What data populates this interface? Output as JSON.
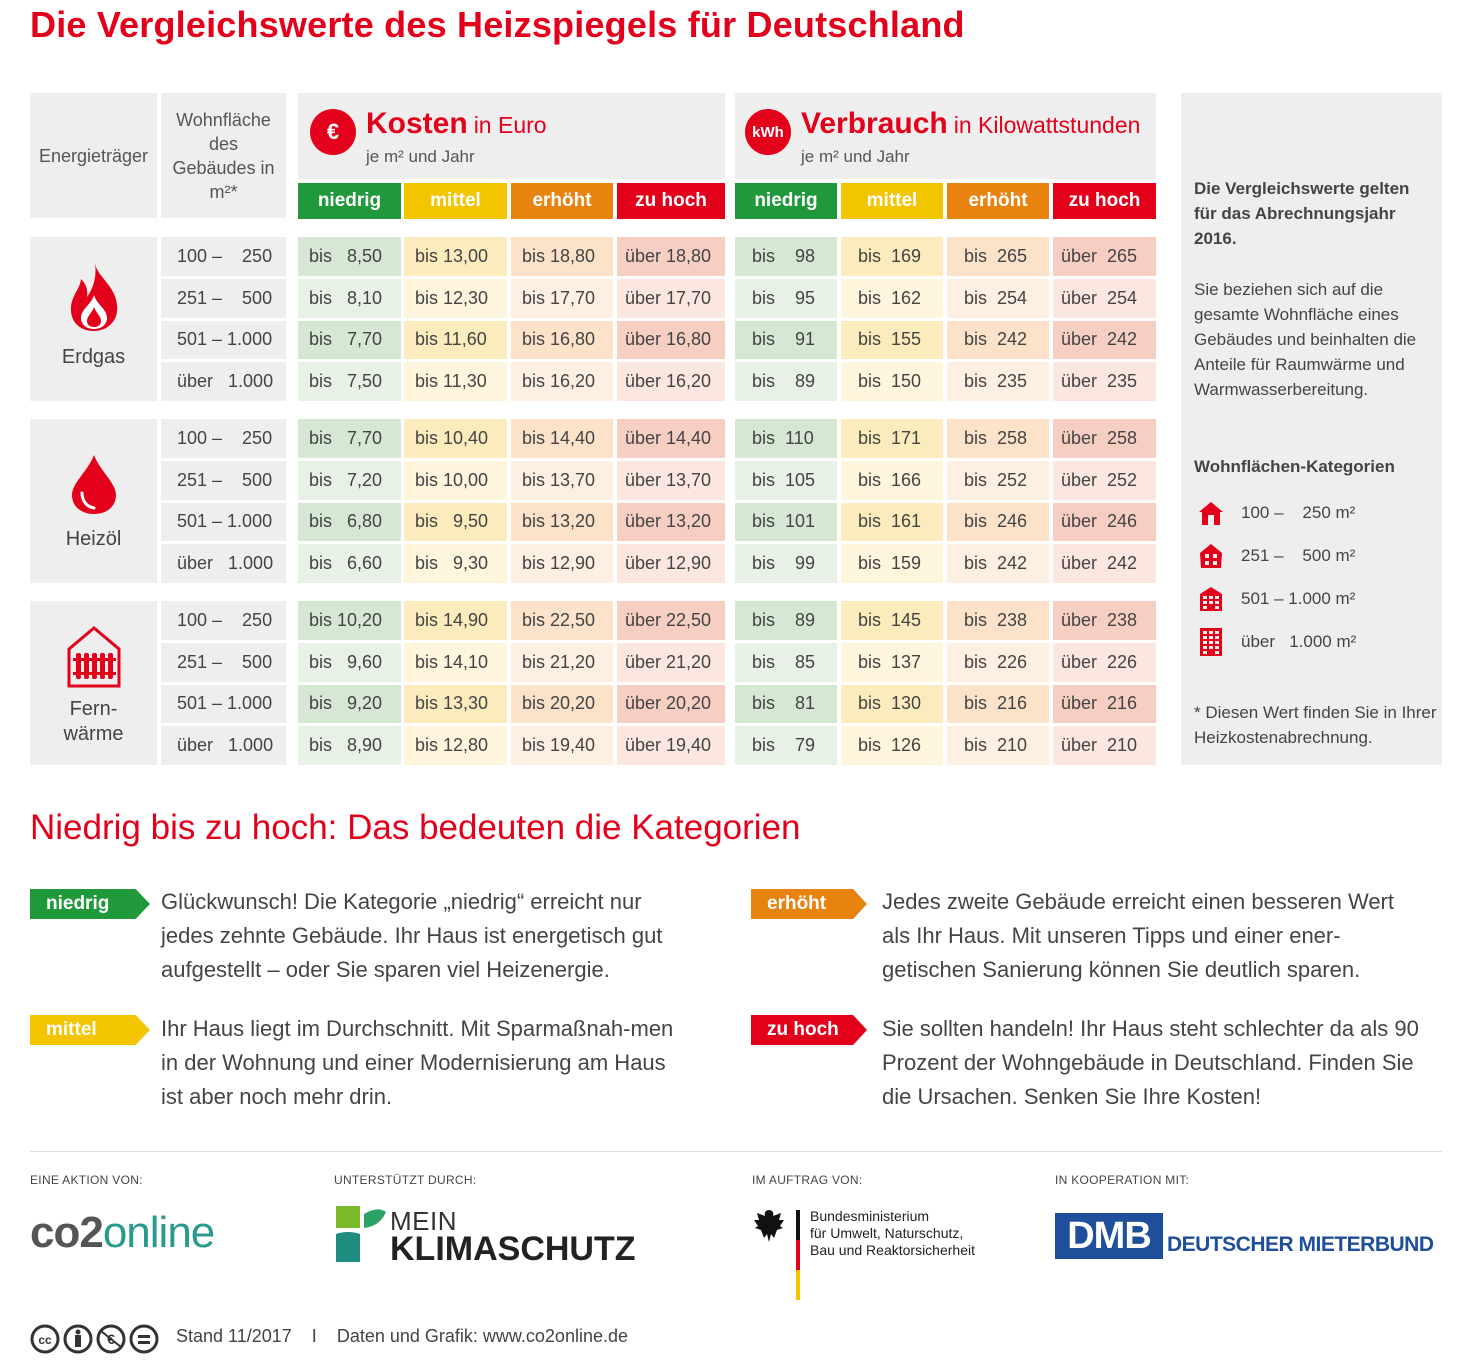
{
  "title": "Die Vergleichswerte des Heizspiegels für Deutschland",
  "header": {
    "energietraeger": "Energieträger",
    "wohnflaeche": "Wohnfläche des Gebäudes in m²*",
    "kosten": {
      "icon": "€",
      "title": "Kosten",
      "unit": "in Euro",
      "sub": "je m² und Jahr"
    },
    "verbrauch": {
      "icon": "kWh",
      "title": "Verbrauch",
      "unit": "in Kilowattstunden",
      "sub": "je m² und Jahr"
    },
    "categories": [
      "niedrig",
      "mittel",
      "erhöht",
      "zu hoch"
    ]
  },
  "colors": {
    "niedrig": "#20983c",
    "mittel": "#f3c400",
    "erhoeht": "#e8830f",
    "zu_hoch": "#e3001b",
    "accent": "#e3001b"
  },
  "energy": [
    {
      "name": "Erdgas",
      "icon": "flame-icon",
      "rows": [
        {
          "area": "100 –    250",
          "cost": [
            "bis   8,50",
            "bis 13,00",
            "bis 18,80",
            "über 18,80"
          ],
          "kwh": [
            "bis    98",
            "bis  169",
            "bis  265",
            "über  265"
          ]
        },
        {
          "area": "251 –    500",
          "cost": [
            "bis   8,10",
            "bis 12,30",
            "bis 17,70",
            "über 17,70"
          ],
          "kwh": [
            "bis    95",
            "bis  162",
            "bis  254",
            "über  254"
          ]
        },
        {
          "area": "501 – 1.000",
          "cost": [
            "bis   7,70",
            "bis 11,60",
            "bis 16,80",
            "über 16,80"
          ],
          "kwh": [
            "bis    91",
            "bis  155",
            "bis  242",
            "über  242"
          ]
        },
        {
          "area": "über   1.000",
          "cost": [
            "bis   7,50",
            "bis 11,30",
            "bis 16,20",
            "über 16,20"
          ],
          "kwh": [
            "bis    89",
            "bis  150",
            "bis  235",
            "über  235"
          ]
        }
      ]
    },
    {
      "name": "Heizöl",
      "icon": "oil-drop-icon",
      "rows": [
        {
          "area": "100 –    250",
          "cost": [
            "bis   7,70",
            "bis 10,40",
            "bis 14,40",
            "über 14,40"
          ],
          "kwh": [
            "bis  110",
            "bis  171",
            "bis  258",
            "über  258"
          ]
        },
        {
          "area": "251 –    500",
          "cost": [
            "bis   7,20",
            "bis 10,00",
            "bis 13,70",
            "über 13,70"
          ],
          "kwh": [
            "bis  105",
            "bis  166",
            "bis  252",
            "über  252"
          ]
        },
        {
          "area": "501 – 1.000",
          "cost": [
            "bis   6,80",
            "bis   9,50",
            "bis 13,20",
            "über 13,20"
          ],
          "kwh": [
            "bis  101",
            "bis  161",
            "bis  246",
            "über  246"
          ]
        },
        {
          "area": "über   1.000",
          "cost": [
            "bis   6,60",
            "bis   9,30",
            "bis 12,90",
            "über 12,90"
          ],
          "kwh": [
            "bis    99",
            "bis  159",
            "bis  242",
            "über  242"
          ]
        }
      ]
    },
    {
      "name": "Fern-\nwärme",
      "icon": "radiator-house-icon",
      "rows": [
        {
          "area": "100 –    250",
          "cost": [
            "bis 10,20",
            "bis 14,90",
            "bis 22,50",
            "über 22,50"
          ],
          "kwh": [
            "bis    89",
            "bis  145",
            "bis  238",
            "über  238"
          ]
        },
        {
          "area": "251 –    500",
          "cost": [
            "bis   9,60",
            "bis 14,10",
            "bis 21,20",
            "über 21,20"
          ],
          "kwh": [
            "bis    85",
            "bis  137",
            "bis  226",
            "über  226"
          ]
        },
        {
          "area": "501 – 1.000",
          "cost": [
            "bis   9,20",
            "bis 13,30",
            "bis 20,20",
            "über 20,20"
          ],
          "kwh": [
            "bis    81",
            "bis  130",
            "bis  216",
            "über  216"
          ]
        },
        {
          "area": "über   1.000",
          "cost": [
            "bis   8,90",
            "bis 12,80",
            "bis 19,40",
            "über 19,40"
          ],
          "kwh": [
            "bis    79",
            "bis  126",
            "bis  210",
            "über  210"
          ]
        }
      ]
    }
  ],
  "side": {
    "p1": "Die Vergleichswerte gelten für das Abrechnungsjahr 2016.",
    "p2": "Sie beziehen sich auf die gesamte Wohnfläche eines Gebäudes und beinhalten die Anteile für Raumwärme und Warmwasserbereitung.",
    "legend_title": "Wohnflächen-Kategorien",
    "legend": [
      "100 –    250 m²",
      "251 –    500 m²",
      "501 – 1.000 m²",
      "über   1.000 m²"
    ],
    "footnote": "* Diesen Wert finden Sie in Ihrer Heizkostenabrechnung."
  },
  "categories_section": {
    "title": "Niedrig bis zu hoch: Das bedeuten die Kategorien",
    "items": [
      {
        "tag": "niedrig",
        "text": "Glückwunsch! Die Kategorie „niedrig“ erreicht nur jedes zehnte Gebäude. Ihr Haus ist energetisch gut aufgestellt – oder Sie sparen viel Heizenergie."
      },
      {
        "tag": "mittel",
        "text": "Ihr Haus liegt im Durchschnitt. Mit Sparmaßnah-men in der Wohnung und einer Modernisierung am Haus ist aber noch mehr drin."
      },
      {
        "tag": "erhöht",
        "text": "Jedes zweite Gebäude erreicht einen besseren Wert als Ihr Haus. Mit unseren Tipps und einer ener-getischen Sanierung können Sie deutlich sparen."
      },
      {
        "tag": "zu hoch",
        "text": "Sie sollten handeln! Ihr Haus steht schlechter da als 90 Prozent der Wohngebäude in Deutschland. Finden Sie die Ursachen. Senken Sie Ihre Kosten!"
      }
    ]
  },
  "footer": {
    "labels": [
      "EINE AKTION VON:",
      "UNTERSTÜTZT DURCH:",
      "IM AUFTRAG VON:",
      "IN KOOPERATION MIT:"
    ],
    "co2online": {
      "a": "co2",
      "b": "online"
    },
    "klimaschutz": {
      "a": "MEIN",
      "b": "KLIMASCHUTZ"
    },
    "bmub": [
      "Bundesministerium",
      "für Umwelt, Naturschutz,",
      "Bau und Reaktorsicherheit"
    ],
    "dmb": {
      "a": "DMB",
      "b": "DEUTSCHER MIETERBUND"
    },
    "stand": "Stand 11/2017",
    "sep": "I",
    "credit": "Daten und Grafik: www.co2online.de"
  }
}
